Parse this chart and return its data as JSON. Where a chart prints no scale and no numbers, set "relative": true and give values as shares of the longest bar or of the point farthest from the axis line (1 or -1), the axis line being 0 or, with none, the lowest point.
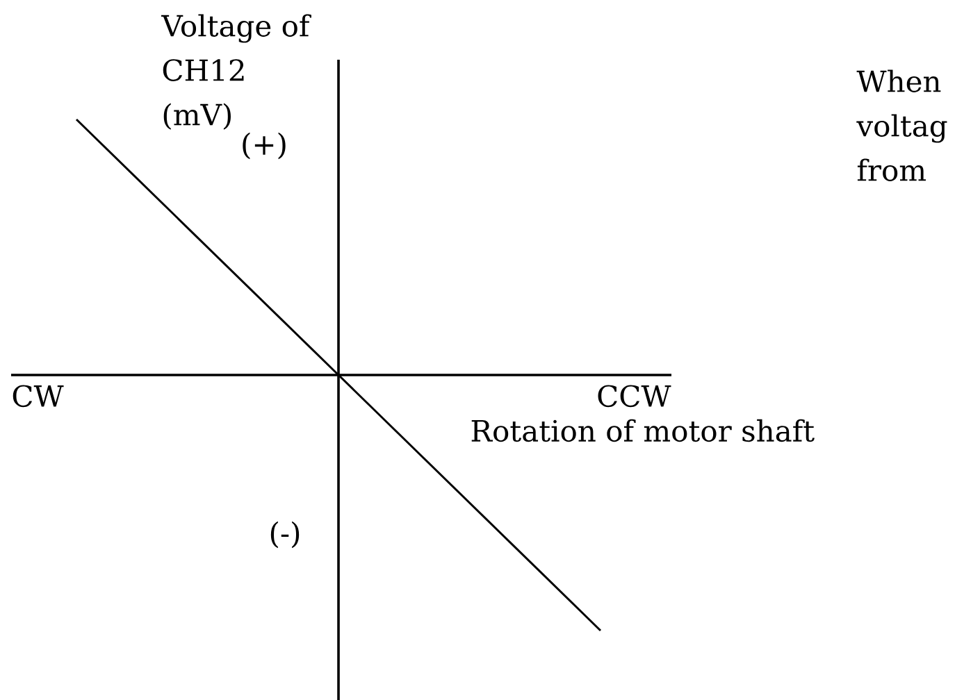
{
  "chart_data": {
    "type": "line",
    "relative": true,
    "xlabel": "Rotation of motor shaft",
    "ylabel": "Voltage of CH12 (mV)",
    "categories": [
      null,
      null,
      null
    ],
    "values": [
      1,
      0,
      -1
    ],
    "color": "#000000",
    "annotations": [
      "(+)",
      "(-)",
      "CW",
      "CCW",
      "When voltag from"
    ]
  }
}
